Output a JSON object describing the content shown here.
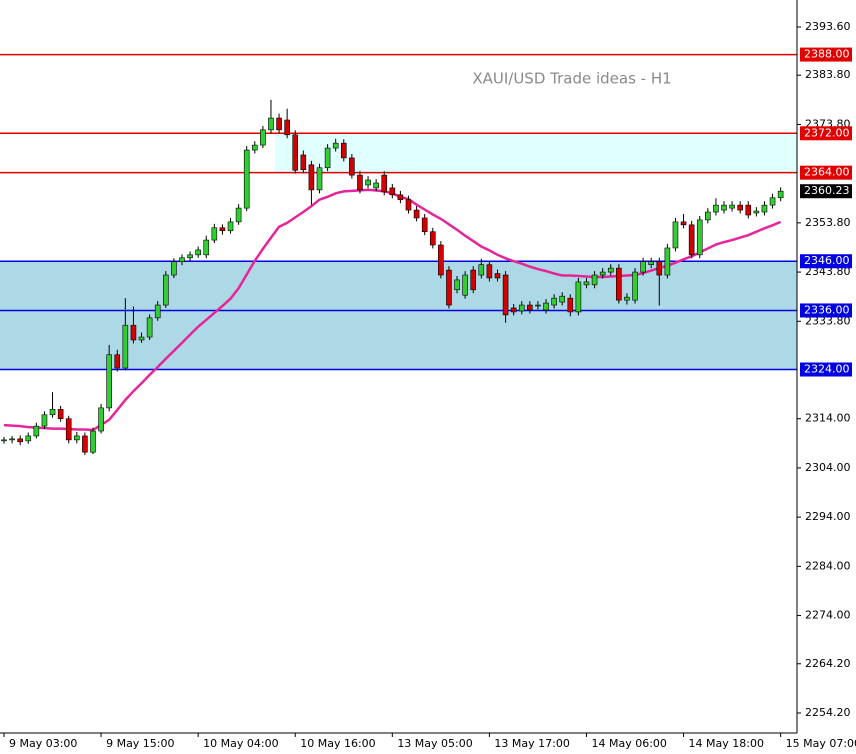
{
  "chart_data": {
    "type": "candlestick",
    "title": "XAUI/USD Trade ideas - H1",
    "ylim": [
      2250.13,
      2399.09
    ],
    "yticks": [
      {
        "value": 2393.6,
        "label": "2393.60"
      },
      {
        "value": 2383.8,
        "label": "2383.80"
      },
      {
        "value": 2373.8,
        "label": "2373.80"
      },
      {
        "value": 2353.8,
        "label": "2353.80"
      },
      {
        "value": 2343.8,
        "label": "2343.80"
      },
      {
        "value": 2333.8,
        "label": "2333.80"
      },
      {
        "value": 2314.0,
        "label": "2314.00"
      },
      {
        "value": 2304.0,
        "label": "2304.00"
      },
      {
        "value": 2294.0,
        "label": "2294.00"
      },
      {
        "value": 2284.0,
        "label": "2284.00"
      },
      {
        "value": 2274.0,
        "label": "2274.00"
      },
      {
        "value": 2264.2,
        "label": "2264.20"
      },
      {
        "value": 2254.2,
        "label": "2254.20"
      }
    ],
    "categories": [
      "9 May 03:00",
      null,
      null,
      null,
      null,
      null,
      null,
      null,
      null,
      null,
      null,
      null,
      "9 May 15:00",
      null,
      null,
      null,
      null,
      null,
      null,
      null,
      null,
      null,
      null,
      null,
      "10 May 04:00",
      null,
      null,
      null,
      null,
      null,
      null,
      null,
      null,
      null,
      null,
      null,
      "10 May 16:00",
      null,
      null,
      null,
      null,
      null,
      null,
      null,
      null,
      null,
      null,
      null,
      "13 May 05:00",
      null,
      null,
      null,
      null,
      null,
      null,
      null,
      null,
      null,
      null,
      null,
      "13 May 17:00",
      null,
      null,
      null,
      null,
      null,
      null,
      null,
      null,
      null,
      null,
      null,
      "14 May 06:00",
      null,
      null,
      null,
      null,
      null,
      null,
      null,
      null,
      null,
      null,
      null,
      "14 May 18:00",
      null,
      null,
      null,
      null,
      null,
      null,
      null,
      null,
      null,
      null,
      null,
      "15 May 07:00"
    ],
    "up_color": "#32cd32",
    "down_color": "#d40000",
    "candles": [
      [
        2309.5,
        2310.3,
        2308.9,
        2309.7
      ],
      [
        2309.7,
        2310.5,
        2309.0,
        2309.9
      ],
      [
        2309.9,
        2310.6,
        2308.6,
        2309.3
      ],
      [
        2309.5,
        2311.2,
        2308.9,
        2310.5
      ],
      [
        2310.5,
        2313.2,
        2310.0,
        2312.5
      ],
      [
        2312.5,
        2315.5,
        2311.9,
        2314.8
      ],
      [
        2314.8,
        2319.4,
        2314.2,
        2315.9
      ],
      [
        2315.9,
        2316.6,
        2313.4,
        2314.0
      ],
      [
        2314.0,
        2314.6,
        2309.0,
        2309.7
      ],
      [
        2309.7,
        2311.3,
        2309.0,
        2310.5
      ],
      [
        2310.5,
        2311.2,
        2306.6,
        2307.2
      ],
      [
        2307.2,
        2312.2,
        2306.8,
        2311.5
      ],
      [
        2311.5,
        2317.0,
        2311.0,
        2316.2
      ],
      [
        2316.2,
        2329.0,
        2315.5,
        2327.0
      ],
      [
        2327.0,
        2328.0,
        2323.6,
        2324.3
      ],
      [
        2324.3,
        2338.5,
        2323.8,
        2333.0
      ],
      [
        2333.0,
        2336.8,
        2329.3,
        2330.0
      ],
      [
        2330.0,
        2331.5,
        2329.4,
        2330.6
      ],
      [
        2330.6,
        2335.2,
        2330.0,
        2334.5
      ],
      [
        2334.5,
        2337.9,
        2333.9,
        2337.1
      ],
      [
        2337.1,
        2344.0,
        2336.5,
        2343.2
      ],
      [
        2343.2,
        2346.6,
        2342.6,
        2345.9
      ],
      [
        2345.9,
        2347.4,
        2345.2,
        2346.7
      ],
      [
        2346.7,
        2348.0,
        2346.0,
        2347.3
      ],
      [
        2347.3,
        2349.0,
        2346.7,
        2348.3
      ],
      [
        2347.3,
        2351.2,
        2346.6,
        2350.3
      ],
      [
        2350.3,
        2353.6,
        2349.7,
        2352.8
      ],
      [
        2352.8,
        2353.5,
        2351.4,
        2352.2
      ],
      [
        2352.2,
        2354.8,
        2351.6,
        2354.0
      ],
      [
        2354.0,
        2357.6,
        2353.4,
        2356.8
      ],
      [
        2356.8,
        2369.4,
        2356.2,
        2368.6
      ],
      [
        2368.6,
        2370.4,
        2367.9,
        2369.6
      ],
      [
        2369.6,
        2373.5,
        2369.0,
        2372.7
      ],
      [
        2372.7,
        2378.8,
        2372.0,
        2375.1
      ],
      [
        2375.1,
        2376.0,
        2372.0,
        2372.7
      ],
      [
        2374.7,
        2377.0,
        2371.0,
        2371.7
      ],
      [
        2371.7,
        2372.6,
        2363.8,
        2364.5
      ],
      [
        2367.6,
        2368.5,
        2363.9,
        2364.6
      ],
      [
        2365.6,
        2366.4,
        2357.5,
        2360.5
      ],
      [
        2360.5,
        2365.8,
        2359.8,
        2365.0
      ],
      [
        2365.0,
        2369.8,
        2364.3,
        2369.0
      ],
      [
        2369.0,
        2370.9,
        2368.3,
        2370.0
      ],
      [
        2370.0,
        2370.8,
        2366.3,
        2367.0
      ],
      [
        2367.0,
        2367.8,
        2362.8,
        2363.5
      ],
      [
        2363.5,
        2364.3,
        2359.8,
        2360.5
      ],
      [
        2361.5,
        2363.3,
        2360.8,
        2362.5
      ],
      [
        2360.9,
        2362.7,
        2360.2,
        2361.9
      ],
      [
        2363.5,
        2364.3,
        2359.4,
        2360.1
      ],
      [
        2360.9,
        2361.7,
        2358.8,
        2359.5
      ],
      [
        2359.5,
        2360.3,
        2357.8,
        2358.5
      ],
      [
        2358.5,
        2359.3,
        2355.7,
        2356.4
      ],
      [
        2356.4,
        2357.2,
        2354.1,
        2354.8
      ],
      [
        2354.8,
        2355.6,
        2351.3,
        2352.0
      ],
      [
        2352.0,
        2352.8,
        2348.6,
        2349.3
      ],
      [
        2349.3,
        2350.1,
        2342.5,
        2343.2
      ],
      [
        2344.2,
        2345.0,
        2336.4,
        2337.1
      ],
      [
        2340.2,
        2343.0,
        2339.5,
        2342.2
      ],
      [
        2339.1,
        2344.0,
        2338.4,
        2343.2
      ],
      [
        2344.2,
        2345.0,
        2339.5,
        2340.2
      ],
      [
        2343.2,
        2346.5,
        2342.5,
        2345.3
      ],
      [
        2345.3,
        2346.1,
        2341.9,
        2342.6
      ],
      [
        2343.5,
        2344.3,
        2341.9,
        2342.6
      ],
      [
        2343.2,
        2344.0,
        2333.5,
        2335.1
      ],
      [
        2336.5,
        2337.3,
        2335.0,
        2335.7
      ],
      [
        2335.9,
        2337.9,
        2335.2,
        2337.1
      ],
      [
        2337.1,
        2337.9,
        2335.4,
        2336.1
      ],
      [
        2336.9,
        2337.9,
        2336.2,
        2337.1
      ],
      [
        2336.1,
        2338.3,
        2335.4,
        2337.5
      ],
      [
        2337.1,
        2339.3,
        2336.4,
        2338.5
      ],
      [
        2337.7,
        2339.7,
        2337.0,
        2338.9
      ],
      [
        2338.5,
        2339.3,
        2334.8,
        2335.7
      ],
      [
        2335.7,
        2342.6,
        2335.0,
        2341.8
      ],
      [
        2341.2,
        2342.6,
        2340.5,
        2341.8
      ],
      [
        2341.2,
        2344.0,
        2340.5,
        2343.2
      ],
      [
        2343.2,
        2344.6,
        2342.5,
        2343.8
      ],
      [
        2343.8,
        2345.4,
        2343.1,
        2344.6
      ],
      [
        2344.6,
        2345.4,
        2337.4,
        2338.1
      ],
      [
        2338.1,
        2339.5,
        2337.2,
        2338.7
      ],
      [
        2338.1,
        2344.6,
        2337.4,
        2343.8
      ],
      [
        2343.8,
        2346.7,
        2343.1,
        2345.9
      ],
      [
        2345.3,
        2346.7,
        2344.6,
        2345.9
      ],
      [
        2345.9,
        2346.7,
        2337.0,
        2343.2
      ],
      [
        2343.2,
        2349.5,
        2342.5,
        2348.7
      ],
      [
        2348.7,
        2354.8,
        2348.0,
        2354.0
      ],
      [
        2354.0,
        2355.6,
        2352.7,
        2353.4
      ],
      [
        2353.4,
        2354.2,
        2346.6,
        2347.3
      ],
      [
        2347.3,
        2355.2,
        2346.6,
        2354.4
      ],
      [
        2354.4,
        2356.8,
        2353.7,
        2356.0
      ],
      [
        2356.0,
        2358.8,
        2355.3,
        2357.4
      ],
      [
        2356.4,
        2358.2,
        2355.7,
        2357.4
      ],
      [
        2356.8,
        2358.2,
        2356.1,
        2357.4
      ],
      [
        2357.4,
        2358.2,
        2355.7,
        2356.4
      ],
      [
        2357.4,
        2358.2,
        2354.7,
        2355.4
      ],
      [
        2355.8,
        2357.0,
        2355.1,
        2356.2
      ],
      [
        2356.0,
        2358.2,
        2355.3,
        2357.4
      ],
      [
        2357.4,
        2359.7,
        2356.7,
        2358.9
      ],
      [
        2358.9,
        2361.0,
        2358.2,
        2360.23
      ]
    ],
    "ma": {
      "color": "#e6259b",
      "values": [
        2312.7,
        2312.6,
        2312.5,
        2312.3,
        2312.2,
        2312.1,
        2312.0,
        2312.0,
        2311.9,
        2311.8,
        2311.8,
        2311.7,
        2312.7,
        2313.8,
        2315.8,
        2317.8,
        2319.6,
        2321.2,
        2322.9,
        2324.5,
        2326.2,
        2327.8,
        2329.4,
        2331.1,
        2332.7,
        2334.1,
        2335.5,
        2336.9,
        2338.4,
        2340.5,
        2343.3,
        2346.1,
        2348.5,
        2350.8,
        2353.0,
        2353.8,
        2354.9,
        2356.0,
        2357.2,
        2358.5,
        2359.1,
        2359.8,
        2360.2,
        2360.3,
        2360.4,
        2360.5,
        2360.4,
        2360.2,
        2359.8,
        2359.1,
        2358.6,
        2357.5,
        2356.5,
        2355.5,
        2354.6,
        2353.5,
        2352.4,
        2351.2,
        2350.1,
        2349.0,
        2348.2,
        2347.3,
        2346.6,
        2346.0,
        2345.5,
        2344.9,
        2344.4,
        2344.0,
        2343.5,
        2343.1,
        2343.1,
        2343.0,
        2342.9,
        2342.8,
        2342.8,
        2342.9,
        2343.0,
        2343.1,
        2343.2,
        2343.6,
        2344.1,
        2344.6,
        2345.1,
        2345.7,
        2346.4,
        2347.0,
        2347.8,
        2348.6,
        2349.4,
        2349.9,
        2350.3,
        2350.8,
        2351.3,
        2352.0,
        2352.7,
        2353.3,
        2354.0
      ]
    },
    "zones": [
      {
        "from": 2364,
        "to": 2372,
        "color": "#e0ffff",
        "x_from": 33.5
      },
      {
        "from": 2324,
        "to": 2346,
        "color": "#add8e6",
        "x_from": -1
      }
    ],
    "levels": [
      {
        "value": 2388,
        "label": "2388.00",
        "color": "#e00000"
      },
      {
        "value": 2372,
        "label": "2372.00",
        "color": "#e00000"
      },
      {
        "value": 2364,
        "label": "2364.00",
        "color": "#e00000"
      },
      {
        "value": 2346,
        "label": "2346.00",
        "color": "#0000e0"
      },
      {
        "value": 2336,
        "label": "2336.00",
        "color": "#0000e0"
      },
      {
        "value": 2324,
        "label": "2324.00",
        "color": "#0000e0"
      }
    ],
    "last_price": {
      "value": 2360.23,
      "label": "2360.23"
    }
  }
}
